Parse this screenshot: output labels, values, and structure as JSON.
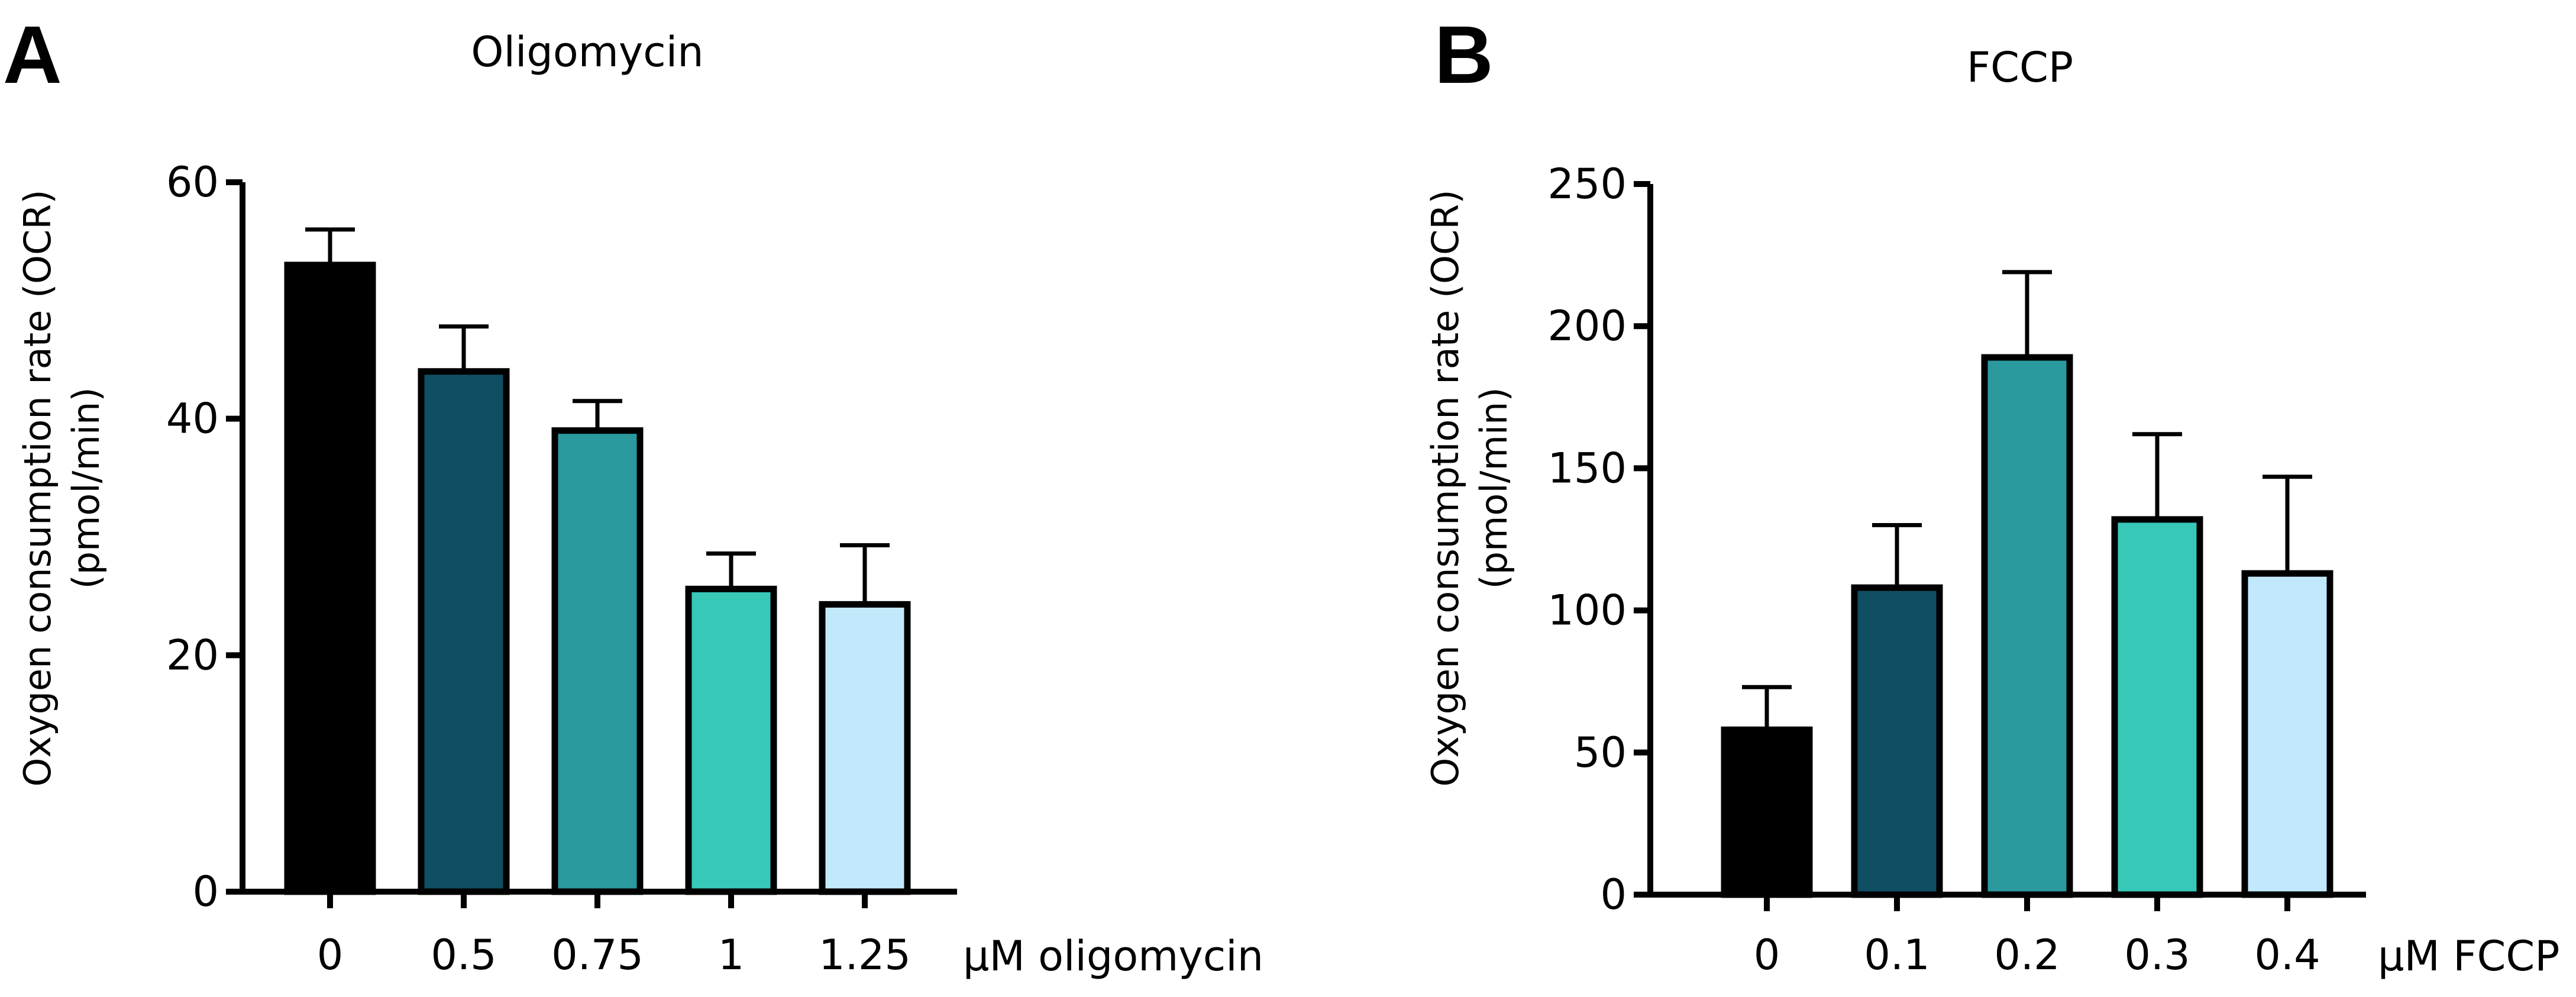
{
  "figure": {
    "panels": [
      {
        "letter": "A"
      },
      {
        "letter": "B"
      }
    ]
  },
  "chart_data": [
    {
      "type": "bar",
      "title": "Oligomycin",
      "ylabel_lines": [
        "Oxygen consumption rate (OCR)",
        "(pmol/min)"
      ],
      "xlabel": "µM oligomycin",
      "categories": [
        "0",
        "0.5",
        "0.75",
        "1",
        "1.25"
      ],
      "values": [
        53,
        44,
        39,
        25.6,
        24.3
      ],
      "errors": [
        3,
        3.8,
        2.5,
        3,
        5
      ],
      "colors": [
        "#000000",
        "#0f4e63",
        "#2a9a9f",
        "#37c8b8",
        "#c2e9fb"
      ],
      "ylim": [
        0,
        60
      ],
      "yticks": [
        0,
        20,
        40,
        60
      ],
      "grid": false
    },
    {
      "type": "bar",
      "title": "FCCP",
      "ylabel_lines": [
        "Oxygen consumption rate (OCR)",
        "(pmol/min)"
      ],
      "xlabel": "µM FCCP",
      "categories": [
        "0",
        "0.1",
        "0.2",
        "0.3",
        "0.4"
      ],
      "values": [
        58,
        108,
        189,
        132,
        113
      ],
      "errors": [
        15,
        22,
        30,
        30,
        34
      ],
      "colors": [
        "#000000",
        "#0f4e63",
        "#2a9a9f",
        "#37c8b8",
        "#c2e9fb"
      ],
      "ylim": [
        0,
        250
      ],
      "yticks": [
        0,
        50,
        100,
        150,
        200,
        250
      ],
      "grid": false
    }
  ]
}
